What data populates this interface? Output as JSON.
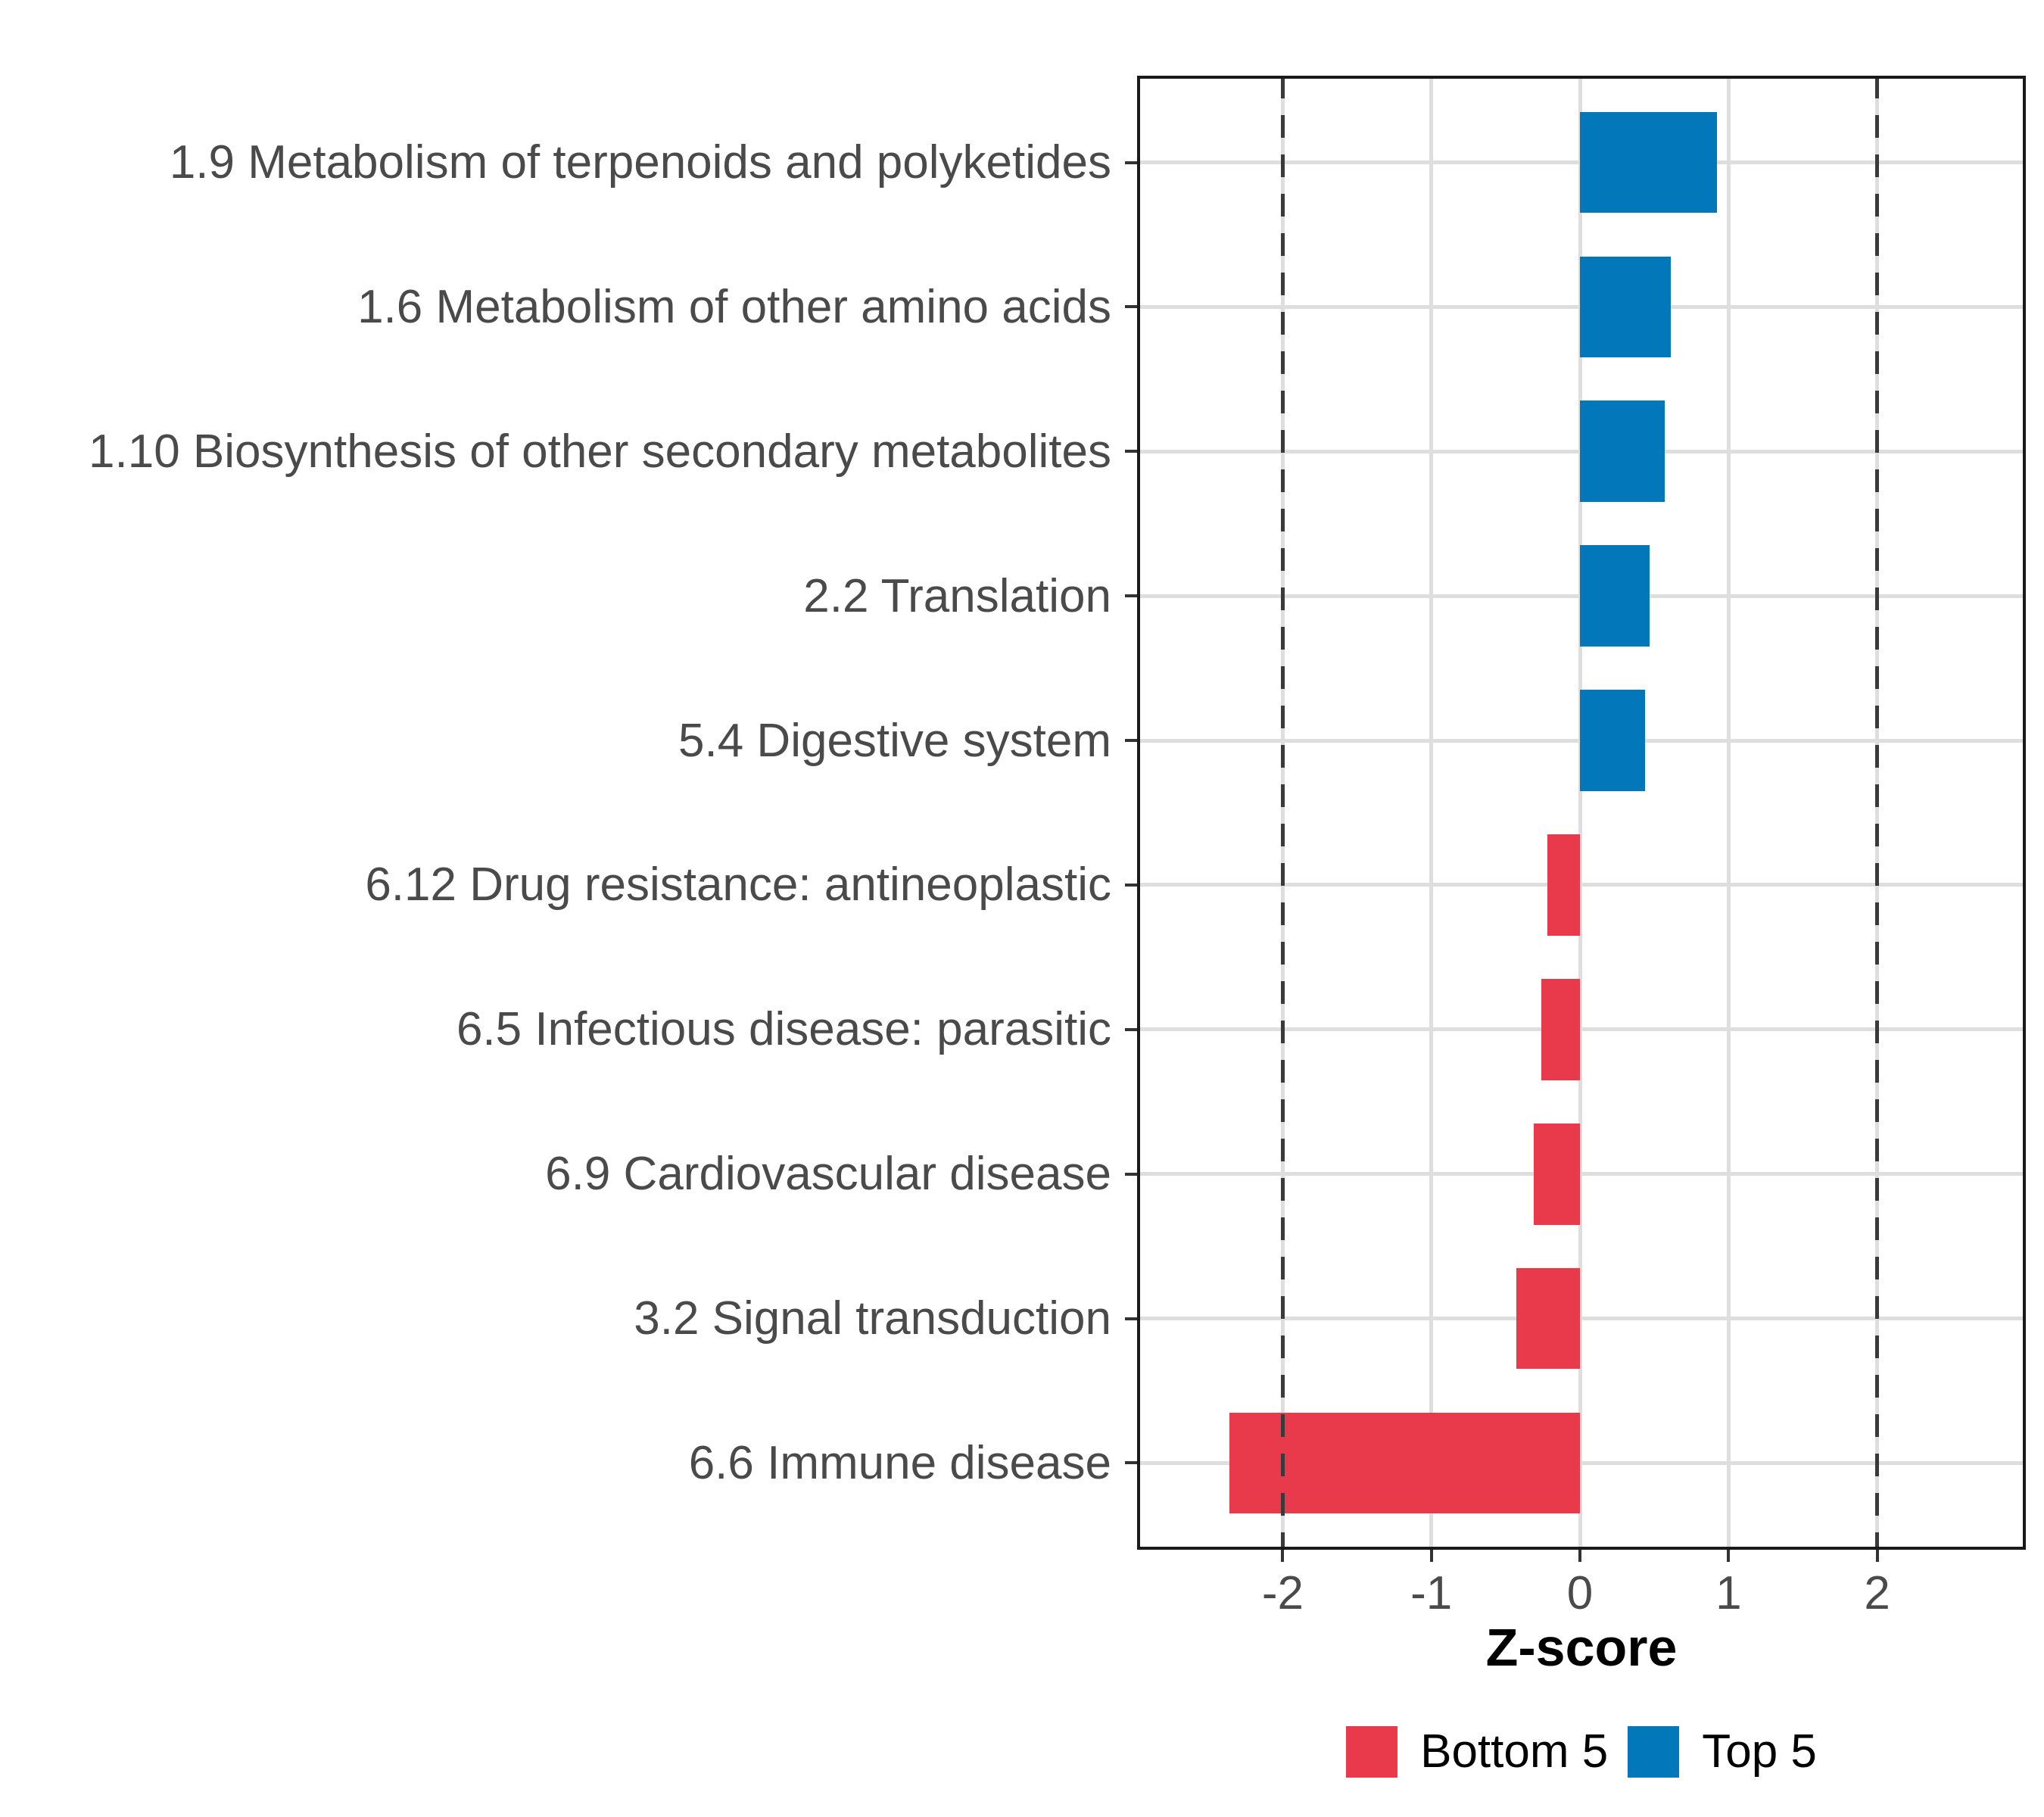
{
  "chart_data": {
    "type": "bar",
    "orientation": "horizontal",
    "title": "",
    "xlabel": "Z-score",
    "ylabel": "",
    "xlim": [
      -2.98,
      3.0
    ],
    "x_ticks": [
      -2,
      -1,
      0,
      1,
      2
    ],
    "reference_lines_dashed": [
      -2,
      2
    ],
    "grid": true,
    "legend_position": "bottom",
    "bar_width_fraction": 0.7,
    "categories": [
      "1.9 Metabolism of terpenoids and polyketides",
      "1.6 Metabolism of other amino acids",
      "1.10 Biosynthesis of other secondary metabolites",
      "2.2 Translation",
      "5.4 Digestive system",
      "6.12 Drug resistance: antineoplastic",
      "6.5 Infectious disease: parasitic",
      "6.9 Cardiovascular disease",
      "3.2 Signal transduction",
      "6.6 Immune disease"
    ],
    "bars": [
      {
        "label": "1.9 Metabolism of terpenoids and polyketides",
        "value": 0.92,
        "group": "Top 5"
      },
      {
        "label": "1.6 Metabolism of other amino acids",
        "value": 0.61,
        "group": "Top 5"
      },
      {
        "label": "1.10 Biosynthesis of other secondary metabolites",
        "value": 0.57,
        "group": "Top 5"
      },
      {
        "label": "2.2 Translation",
        "value": 0.47,
        "group": "Top 5"
      },
      {
        "label": "5.4 Digestive system",
        "value": 0.44,
        "group": "Top 5"
      },
      {
        "label": "6.12 Drug resistance: antineoplastic",
        "value": -0.22,
        "group": "Bottom 5"
      },
      {
        "label": "6.5 Infectious disease: parasitic",
        "value": -0.26,
        "group": "Bottom 5"
      },
      {
        "label": "6.9 Cardiovascular disease",
        "value": -0.31,
        "group": "Bottom 5"
      },
      {
        "label": "3.2 Signal transduction",
        "value": -0.43,
        "group": "Bottom 5"
      },
      {
        "label": "6.6 Immune disease",
        "value": -2.36,
        "group": "Bottom 5"
      }
    ],
    "group_colors": {
      "Bottom 5": "#E83A4A",
      "Top 5": "#0277BA"
    },
    "legend": [
      {
        "label": "Bottom 5",
        "color": "#E83A4A"
      },
      {
        "label": "Top 5",
        "color": "#0277BA"
      }
    ],
    "colors": {
      "gridline": "#dedede",
      "panel_border": "#1a1a1a",
      "reference_line": "#3a3a3a",
      "axis_text": "#4a4a4a",
      "background": "#ffffff"
    }
  }
}
